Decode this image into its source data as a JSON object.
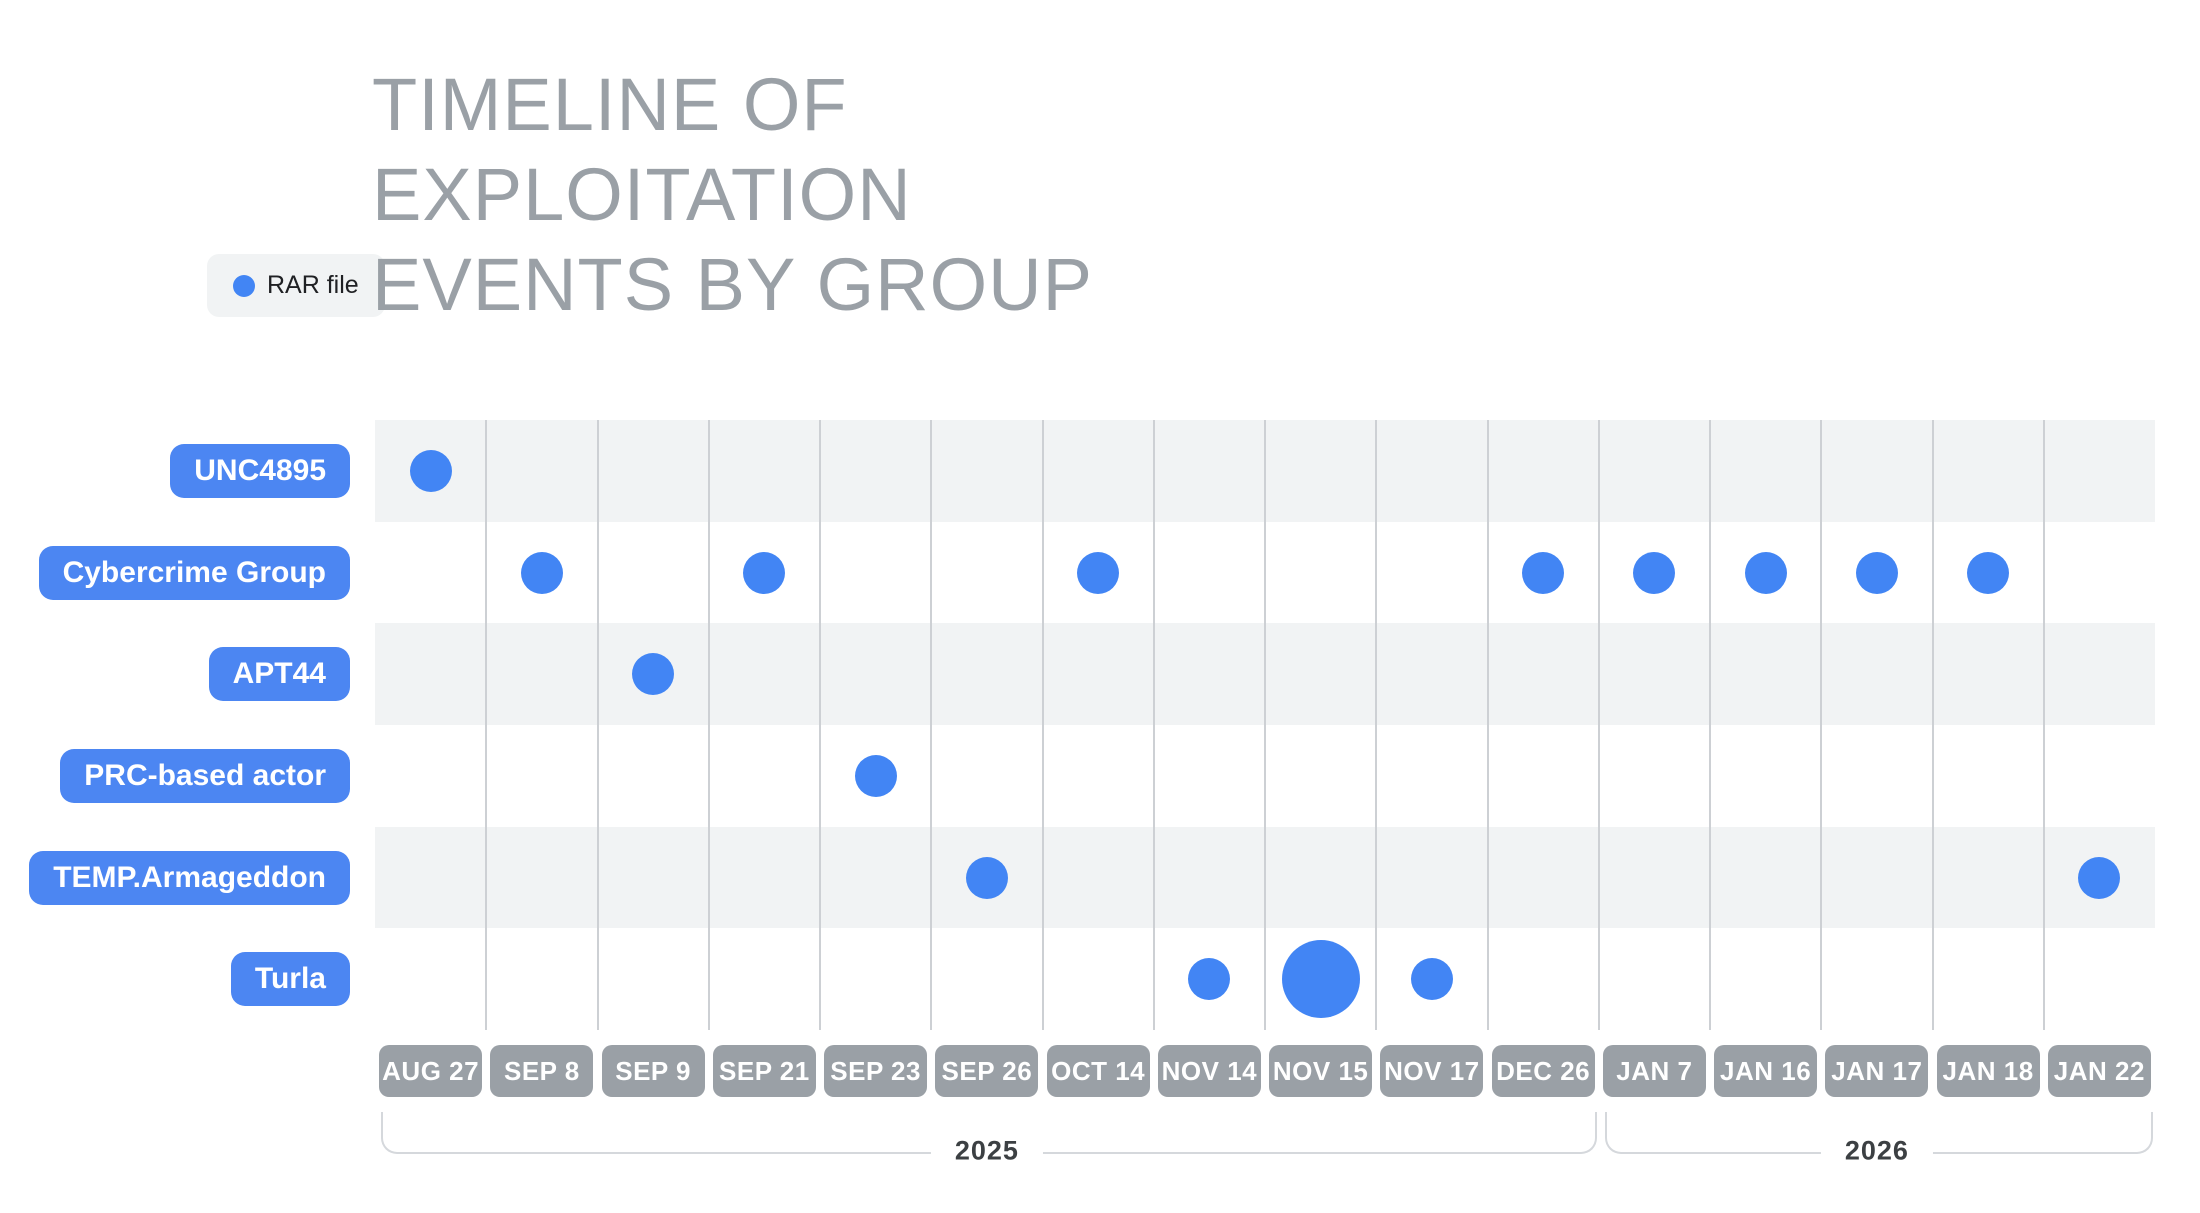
{
  "title": "TIMELINE OF EXPLOITATION EVENTS BY GROUP",
  "legend": {
    "label": "RAR file",
    "marker": "blue-dot"
  },
  "colors": {
    "bubble_blue": "#4285F4",
    "group_pill_blue": "#4C86F2",
    "date_pill_gray": "#9AA0A6",
    "row_stripe": "#F1F3F4",
    "gridline": "#CDD0D4",
    "title_gray": "#9AA0A6",
    "year_text": "#3C4043",
    "bracket_line": "#D5D8DC"
  },
  "chart_data": {
    "type": "scatter",
    "title": "TIMELINE OF EXPLOITATION EVENTS BY GROUP",
    "legend_entries": [
      {
        "label": "RAR file",
        "color": "#4285F4"
      }
    ],
    "y_categories": [
      "UNC4895",
      "Cybercrime Group",
      "APT44",
      "PRC-based actor",
      "TEMP.Armageddon",
      "Turla"
    ],
    "x_categories": [
      "AUG 27",
      "SEP 8",
      "SEP 9",
      "SEP 21",
      "SEP 23",
      "SEP 26",
      "OCT 14",
      "NOV 14",
      "NOV 15",
      "NOV 17",
      "DEC 26",
      "JAN 7",
      "JAN 16",
      "JAN 17",
      "JAN 18",
      "JAN 22"
    ],
    "year_groups": [
      {
        "label": "2025",
        "start_date": "AUG 27",
        "end_date": "DEC 26"
      },
      {
        "label": "2026",
        "start_date": "JAN 7",
        "end_date": "JAN 22"
      }
    ],
    "points": [
      {
        "group": "UNC4895",
        "date": "AUG 27",
        "size": "normal"
      },
      {
        "group": "Cybercrime Group",
        "date": "SEP 8",
        "size": "normal"
      },
      {
        "group": "Cybercrime Group",
        "date": "SEP 21",
        "size": "normal"
      },
      {
        "group": "Cybercrime Group",
        "date": "OCT 14",
        "size": "normal"
      },
      {
        "group": "Cybercrime Group",
        "date": "DEC 26",
        "size": "normal"
      },
      {
        "group": "Cybercrime Group",
        "date": "JAN 7",
        "size": "normal"
      },
      {
        "group": "Cybercrime Group",
        "date": "JAN 16",
        "size": "normal"
      },
      {
        "group": "Cybercrime Group",
        "date": "JAN 17",
        "size": "normal"
      },
      {
        "group": "Cybercrime Group",
        "date": "JAN 18",
        "size": "normal"
      },
      {
        "group": "APT44",
        "date": "SEP 9",
        "size": "normal"
      },
      {
        "group": "PRC-based actor",
        "date": "SEP 23",
        "size": "normal"
      },
      {
        "group": "TEMP.Armageddon",
        "date": "SEP 26",
        "size": "normal"
      },
      {
        "group": "TEMP.Armageddon",
        "date": "JAN 22",
        "size": "normal"
      },
      {
        "group": "Turla",
        "date": "NOV 14",
        "size": "normal"
      },
      {
        "group": "Turla",
        "date": "NOV 15",
        "size": "large"
      },
      {
        "group": "Turla",
        "date": "NOV 17",
        "size": "normal"
      }
    ],
    "layout_hints": {
      "row_stripes": "alternating starting with gray on first row",
      "gridlines": "vertical between columns",
      "legend_position": "top-left",
      "axis_labels_style": "pill buttons"
    }
  }
}
